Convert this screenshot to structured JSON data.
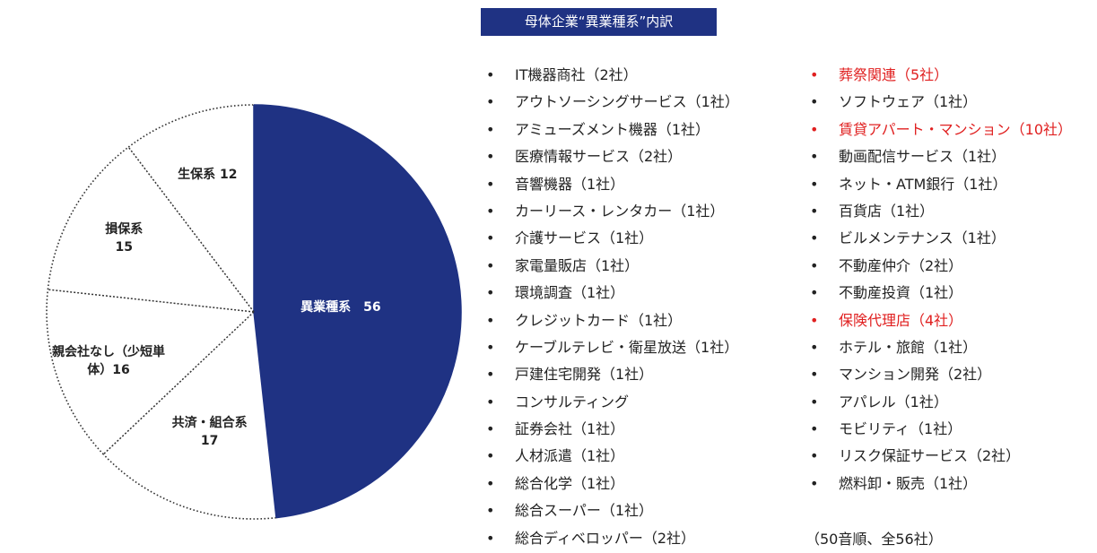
{
  "title": "母体企業“異業種系”内訳",
  "chart_data": {
    "type": "pie",
    "slices": [
      {
        "label": "異業種系",
        "value": 56,
        "display": "異業種系　56",
        "color": "#1f3283",
        "light": true
      },
      {
        "label": "共済・組合系",
        "value": 17,
        "display": "共済・組合系\n17",
        "color": "#ffffff",
        "light": false
      },
      {
        "label": "親会社なし（少短単体）",
        "value": 16,
        "display": "親会社なし（少短単\n体）16",
        "color": "#ffffff",
        "light": false
      },
      {
        "label": "損保系",
        "value": 15,
        "display": "損保系\n15",
        "color": "#ffffff",
        "light": false
      },
      {
        "label": "生保系",
        "value": 12,
        "display": "生保系 12",
        "color": "#ffffff",
        "light": false
      }
    ]
  },
  "list": {
    "bullet": "•",
    "column1": [
      {
        "text": "IT機器商社（2社）",
        "highlight": false
      },
      {
        "text": "アウトソーシングサービス（1社）",
        "highlight": false
      },
      {
        "text": "アミューズメント機器（1社）",
        "highlight": false
      },
      {
        "text": "医療情報サービス（2社）",
        "highlight": false
      },
      {
        "text": "音響機器（1社）",
        "highlight": false
      },
      {
        "text": "カーリース・レンタカー（1社）",
        "highlight": false
      },
      {
        "text": "介護サービス（1社）",
        "highlight": false
      },
      {
        "text": "家電量販店（1社）",
        "highlight": false
      },
      {
        "text": "環境調査（1社）",
        "highlight": false
      },
      {
        "text": "クレジットカード（1社）",
        "highlight": false
      },
      {
        "text": "ケーブルテレビ・衛星放送（1社）",
        "highlight": false
      },
      {
        "text": "戸建住宅開発（1社）",
        "highlight": false
      },
      {
        "text": "コンサルティング",
        "highlight": false
      },
      {
        "text": "証券会社（1社）",
        "highlight": false
      },
      {
        "text": "人材派遣（1社）",
        "highlight": false
      },
      {
        "text": "総合化学（1社）",
        "highlight": false
      },
      {
        "text": "総合スーパー（1社）",
        "highlight": false
      },
      {
        "text": "総合ディベロッパー（2社）",
        "highlight": false
      }
    ],
    "column2": [
      {
        "text": "葬祭関連（5社）",
        "highlight": true
      },
      {
        "text": "ソフトウェア（1社）",
        "highlight": false
      },
      {
        "text": "賃貸アパート・マンション（10社）",
        "highlight": true
      },
      {
        "text": "動画配信サービス（1社）",
        "highlight": false
      },
      {
        "text": "ネット・ATM銀行（1社）",
        "highlight": false
      },
      {
        "text": "百貨店（1社）",
        "highlight": false
      },
      {
        "text": "ビルメンテナンス（1社）",
        "highlight": false
      },
      {
        "text": "不動産仲介（2社）",
        "highlight": false
      },
      {
        "text": "不動産投資（1社）",
        "highlight": false
      },
      {
        "text": "保険代理店（4社）",
        "highlight": true
      },
      {
        "text": "ホテル・旅館（1社）",
        "highlight": false
      },
      {
        "text": "マンション開発（2社）",
        "highlight": false
      },
      {
        "text": "アパレル（1社）",
        "highlight": false
      },
      {
        "text": "モビリティ（1社）",
        "highlight": false
      },
      {
        "text": "リスク保証サービス（2社）",
        "highlight": false
      },
      {
        "text": "燃料卸・販売（1社）",
        "highlight": false
      }
    ],
    "note": "（50音順、全56社）"
  },
  "colors": {
    "accent": "#1f3283",
    "highlight": "#e02020"
  }
}
